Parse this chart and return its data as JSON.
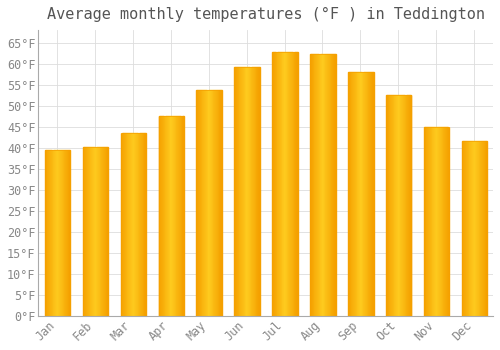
{
  "title": "Average monthly temperatures (°F ) in Teddington",
  "months": [
    "Jan",
    "Feb",
    "Mar",
    "Apr",
    "May",
    "Jun",
    "Jul",
    "Aug",
    "Sep",
    "Oct",
    "Nov",
    "Dec"
  ],
  "values": [
    39.5,
    40.3,
    43.5,
    47.5,
    53.8,
    59.2,
    62.8,
    62.4,
    58.1,
    52.5,
    45.0,
    41.5
  ],
  "bar_color_light": "#FFD060",
  "bar_color_mid": "#FFBB00",
  "bar_color_dark": "#F5A000",
  "background_color": "#FFFFFF",
  "plot_bg_color": "#FFFFFF",
  "grid_color": "#DDDDDD",
  "ylim": [
    0,
    68
  ],
  "yticks": [
    0,
    5,
    10,
    15,
    20,
    25,
    30,
    35,
    40,
    45,
    50,
    55,
    60,
    65
  ],
  "title_fontsize": 11,
  "tick_fontsize": 8.5,
  "tick_color": "#888888",
  "title_color": "#555555",
  "bar_width": 0.65
}
